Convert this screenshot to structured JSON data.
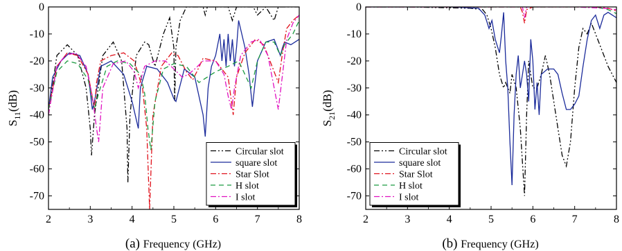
{
  "chart_data": [
    {
      "type": "line",
      "panel_label": "(a)",
      "xlabel": "Frequency (GHz)",
      "ylabel_main": "S",
      "ylabel_sub": "11",
      "ylabel_unit": "(dB)",
      "xlim": [
        2,
        8
      ],
      "ylim": [
        -75,
        0
      ],
      "xticks": [
        2,
        3,
        4,
        5,
        6,
        7,
        8
      ],
      "yticks": [
        0,
        -10,
        -20,
        -30,
        -40,
        -50,
        -60,
        -70
      ],
      "legend_position": "bottom-right",
      "series": [
        {
          "name": "Circular slot",
          "color": "#000000",
          "dash": "8,3,2,3,2,3",
          "x": [
            2.0,
            2.2,
            2.45,
            2.7,
            2.9,
            3.0,
            3.03,
            3.1,
            3.3,
            3.55,
            3.75,
            3.88,
            3.9,
            3.95,
            4.1,
            4.3,
            4.4,
            4.45,
            4.55,
            4.75,
            4.9,
            5.0,
            5.02,
            5.05,
            5.15,
            5.3,
            5.5,
            5.7,
            5.75,
            5.8,
            6.0,
            6.3,
            6.4,
            6.5,
            6.9,
            7.0,
            7.2,
            7.4,
            7.5,
            7.6,
            8.0
          ],
          "y": [
            -40,
            -18,
            -14,
            -18,
            -30,
            -45,
            -55,
            -40,
            -18,
            -13,
            -20,
            -45,
            -65,
            -40,
            -18,
            -13,
            -14,
            -17,
            -22,
            -10,
            -4,
            -15,
            -35,
            -15,
            -5,
            0,
            0,
            0,
            -3,
            0,
            0,
            0,
            -5,
            0,
            0,
            -3,
            0,
            -5,
            0,
            0,
            0
          ]
        },
        {
          "name": "square slot",
          "color": "#1a2a9a",
          "dash": "",
          "x": [
            2.0,
            2.1,
            2.3,
            2.5,
            2.75,
            2.95,
            3.05,
            3.1,
            3.25,
            3.5,
            3.8,
            4.0,
            4.15,
            4.2,
            4.35,
            4.6,
            4.85,
            5.0,
            5.05,
            5.1,
            5.25,
            5.5,
            5.7,
            5.75,
            5.82,
            5.9,
            6.0,
            6.1,
            6.15,
            6.2,
            6.25,
            6.3,
            6.35,
            6.4,
            6.45,
            6.5,
            6.55,
            6.7,
            6.8,
            6.88,
            7.0,
            7.2,
            7.4,
            7.55,
            7.6,
            7.65,
            7.8,
            8.0
          ],
          "y": [
            -38,
            -26,
            -20,
            -17,
            -18,
            -25,
            -38,
            -35,
            -22,
            -20,
            -25,
            -35,
            -45,
            -30,
            -22,
            -23,
            -28,
            -34,
            -35,
            -32,
            -23,
            -26,
            -40,
            -48,
            -30,
            -22,
            -18,
            -10,
            -20,
            -12,
            -22,
            -10,
            -20,
            -12,
            -22,
            -15,
            -5,
            -15,
            -25,
            -37,
            -20,
            -13,
            -12,
            -18,
            -15,
            -13,
            -14,
            -12
          ]
        },
        {
          "name": "Star Slot",
          "color": "#e0101a",
          "dash": "8,3,2,3",
          "x": [
            2.0,
            2.2,
            2.45,
            2.7,
            2.95,
            3.1,
            3.15,
            3.25,
            3.5,
            3.8,
            4.05,
            4.25,
            4.35,
            4.42,
            4.5,
            4.7,
            4.95,
            5.1,
            5.3,
            5.45,
            5.55,
            5.7,
            6.0,
            6.3,
            6.42,
            6.5,
            6.7,
            6.95,
            7.15,
            7.35,
            7.5,
            7.6,
            7.7,
            7.85,
            8.0
          ],
          "y": [
            -38,
            -22,
            -17,
            -18,
            -25,
            -38,
            -28,
            -20,
            -18,
            -17,
            -20,
            -30,
            -45,
            -75,
            -40,
            -22,
            -17,
            -18,
            -24,
            -27,
            -24,
            -19,
            -20,
            -26,
            -40,
            -26,
            -17,
            -12,
            -14,
            -22,
            -28,
            -17,
            -8,
            -5,
            -3
          ]
        },
        {
          "name": "H slot",
          "color": "#1a9a40",
          "dash": "7,5",
          "x": [
            2.0,
            2.2,
            2.45,
            2.7,
            2.95,
            3.1,
            3.2,
            3.4,
            3.65,
            3.95,
            4.2,
            4.3,
            4.38,
            4.45,
            4.55,
            4.75,
            5.0,
            5.3,
            5.6,
            5.8,
            6.0,
            6.3,
            6.55,
            6.7,
            6.85,
            7.0,
            7.2,
            7.4,
            7.55,
            7.65,
            7.85,
            8.0
          ],
          "y": [
            -38,
            -24,
            -20,
            -21,
            -27,
            -38,
            -32,
            -22,
            -20,
            -21,
            -25,
            -32,
            -45,
            -53,
            -35,
            -23,
            -21,
            -22,
            -28,
            -26,
            -24,
            -22,
            -20,
            -25,
            -30,
            -20,
            -13,
            -13,
            -18,
            -14,
            -10,
            -5
          ]
        },
        {
          "name": "I slot",
          "color": "#e010c0",
          "dash": "8,3,2,3",
          "x": [
            2.0,
            2.2,
            2.4,
            2.65,
            2.9,
            3.05,
            3.15,
            3.2,
            3.3,
            3.55,
            3.85,
            4.05,
            4.15,
            4.3,
            4.55,
            4.8,
            5.0,
            5.2,
            5.35,
            5.5,
            5.7,
            6.0,
            6.2,
            6.3,
            6.38,
            6.45,
            6.6,
            6.85,
            7.05,
            7.25,
            7.4,
            7.5,
            7.6,
            7.7,
            7.85,
            8.0
          ],
          "y": [
            -40,
            -22,
            -18,
            -17,
            -22,
            -33,
            -45,
            -50,
            -30,
            -21,
            -20,
            -24,
            -30,
            -22,
            -20,
            -20,
            -23,
            -26,
            -25,
            -23,
            -20,
            -20,
            -25,
            -33,
            -38,
            -30,
            -18,
            -13,
            -12,
            -18,
            -30,
            -38,
            -25,
            -12,
            -6,
            -3
          ]
        }
      ]
    },
    {
      "type": "line",
      "panel_label": "(b)",
      "xlabel": "Frequency (GHz)",
      "ylabel_main": "S",
      "ylabel_sub": "21",
      "ylabel_unit": "(dB)",
      "xlim": [
        2,
        8
      ],
      "ylim": [
        -75,
        0
      ],
      "xticks": [
        2,
        3,
        4,
        5,
        6,
        7,
        8
      ],
      "yticks": [
        0,
        -10,
        -20,
        -30,
        -40,
        -50,
        -60,
        -70
      ],
      "legend_position": "bottom-left",
      "series": [
        {
          "name": "Circular slot",
          "color": "#000000",
          "dash": "8,3,2,3,2,3",
          "x": [
            2.0,
            3.0,
            4.0,
            4.5,
            4.8,
            4.9,
            5.0,
            5.1,
            5.2,
            5.3,
            5.35,
            5.45,
            5.5,
            5.6,
            5.7,
            5.8,
            5.85,
            5.9,
            6.0,
            6.1,
            6.2,
            6.3,
            6.4,
            6.5,
            6.6,
            6.7,
            6.8,
            6.9,
            7.0,
            7.1,
            7.2,
            7.3,
            7.4,
            7.6,
            7.8,
            8.0
          ],
          "y": [
            0,
            0,
            -0.3,
            -0.5,
            -1,
            -3,
            -8,
            -15,
            -25,
            -30,
            -28,
            -32,
            -25,
            -30,
            -45,
            -70,
            -40,
            -20,
            -30,
            -30,
            -25,
            -18,
            -25,
            -35,
            -45,
            -55,
            -59,
            -50,
            -30,
            -15,
            -8,
            -10,
            -6,
            -14,
            -22,
            -28
          ]
        },
        {
          "name": "square slot",
          "color": "#1a2a9a",
          "dash": "",
          "x": [
            2.0,
            3.0,
            4.0,
            4.7,
            4.85,
            4.95,
            5.02,
            5.1,
            5.2,
            5.25,
            5.3,
            5.35,
            5.4,
            5.45,
            5.5,
            5.55,
            5.6,
            5.65,
            5.7,
            5.75,
            5.8,
            5.85,
            5.9,
            5.95,
            6.0,
            6.05,
            6.1,
            6.15,
            6.2,
            6.35,
            6.5,
            6.6,
            6.7,
            6.8,
            6.9,
            7.0,
            7.1,
            7.2,
            7.3,
            7.4,
            7.5,
            7.6,
            7.7,
            7.8,
            8.0
          ],
          "y": [
            0,
            0,
            0,
            -0.5,
            -3,
            -8,
            -5,
            -12,
            -17,
            -10,
            -2,
            -20,
            -30,
            -50,
            -66,
            -40,
            -25,
            -18,
            -30,
            -25,
            -20,
            -25,
            -35,
            -12,
            -20,
            -38,
            -28,
            -40,
            -25,
            -23,
            -23,
            -25,
            -32,
            -38,
            -38,
            -36,
            -33,
            -22,
            -12,
            -5,
            -3,
            -8,
            -3,
            -2,
            -4
          ]
        },
        {
          "name": "Star Slot",
          "color": "#e0101a",
          "dash": "8,3,2,3",
          "x": [
            2.0,
            3.0,
            4.0,
            5.0,
            5.7,
            5.75,
            5.8,
            5.85,
            6.0,
            7.0,
            7.5,
            7.8,
            8.0
          ],
          "y": [
            0,
            0,
            0,
            0,
            0,
            -2,
            -6,
            -1,
            0,
            0,
            0,
            -0.5,
            -1.5
          ]
        },
        {
          "name": "H slot",
          "color": "#1a9a40",
          "dash": "7,5",
          "x": [
            2.0,
            3.0,
            4.0,
            5.0,
            6.0,
            7.0,
            7.5,
            7.8,
            8.0
          ],
          "y": [
            0,
            0,
            0,
            0,
            0,
            0,
            0,
            -1,
            -2.5
          ]
        },
        {
          "name": "I slot",
          "color": "#e010c0",
          "dash": "8,3,2,3",
          "x": [
            2.0,
            3.0,
            4.0,
            5.0,
            5.75,
            5.8,
            5.85,
            6.0,
            7.0,
            7.7,
            8.0
          ],
          "y": [
            0,
            0,
            0,
            0,
            0,
            -4,
            0,
            0,
            0,
            -0.5,
            -1
          ]
        }
      ]
    }
  ]
}
